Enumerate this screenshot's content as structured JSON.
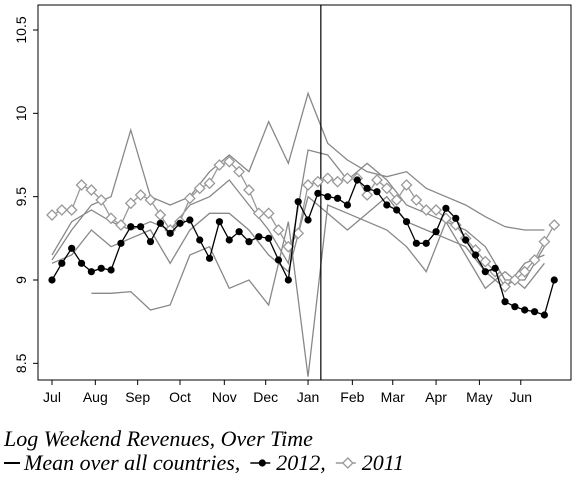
{
  "chart_data": {
    "type": "line",
    "title": "Log Weekend Revenues, Over Time",
    "legend": [
      {
        "label": "Mean over all countries,",
        "style": "line",
        "color": "#000000"
      },
      {
        "label": "2012,",
        "style": "circle",
        "color": "#000000"
      },
      {
        "label": "2011",
        "style": "diamond",
        "color": "#999999"
      }
    ],
    "x": [
      0,
      1,
      2,
      3,
      4,
      5,
      6,
      7,
      8,
      9,
      10,
      11,
      12,
      13,
      14,
      15,
      16,
      17,
      18,
      19,
      20,
      21,
      22,
      23,
      24,
      25,
      26,
      27,
      28,
      29,
      30,
      31,
      32,
      33,
      34,
      35,
      36,
      37,
      38,
      39,
      40,
      41,
      42,
      43,
      44,
      45,
      46,
      47,
      48,
      49,
      50,
      51
    ],
    "series": [
      {
        "color": "#000000",
        "marker": "circle",
        "values": [
          9.0,
          9.1,
          9.19,
          9.1,
          9.05,
          9.07,
          9.06,
          9.22,
          9.32,
          9.32,
          9.23,
          9.34,
          9.28,
          9.34,
          9.36,
          9.24,
          9.13,
          9.35,
          9.24,
          9.29,
          9.23,
          9.26,
          9.25,
          9.12,
          9.0,
          9.47,
          9.36,
          9.52,
          9.5,
          9.49,
          9.45,
          9.6,
          9.55,
          9.53,
          9.45,
          9.42,
          9.35,
          9.22,
          9.22,
          9.29,
          9.43,
          9.37,
          9.24,
          9.15,
          9.05,
          9.07,
          8.87,
          8.84,
          8.82,
          8.81,
          8.79,
          9.0
        ]
      },
      {
        "color": "#999999",
        "marker": "diamond",
        "values": [
          9.39,
          9.42,
          9.42,
          9.57,
          9.54,
          9.48,
          9.37,
          9.33,
          9.46,
          9.51,
          9.48,
          9.39,
          9.3,
          9.35,
          9.49,
          9.55,
          9.58,
          9.69,
          9.71,
          9.65,
          9.54,
          9.4,
          9.4,
          9.3,
          9.2,
          9.28,
          9.57,
          9.59,
          9.61,
          9.59,
          9.61,
          9.61,
          9.51,
          9.6,
          9.55,
          9.48,
          9.57,
          9.48,
          9.42,
          9.42,
          9.37,
          9.33,
          9.25,
          9.18,
          9.11,
          9.05,
          8.96,
          9.0,
          9.05,
          9.12,
          9.23,
          9.33
        ]
      }
    ],
    "country_lines": [
      {
        "color": "#888888",
        "x": [
          0,
          2,
          4,
          6,
          8,
          10,
          12,
          14,
          16,
          18,
          20,
          22,
          24,
          26,
          28,
          30,
          32,
          34,
          36,
          38,
          40,
          42,
          44,
          46,
          48,
          50
        ],
        "values": [
          9.12,
          9.3,
          9.45,
          9.5,
          9.9,
          9.5,
          9.45,
          9.5,
          9.65,
          9.75,
          9.65,
          9.95,
          9.7,
          10.12,
          9.82,
          9.72,
          9.65,
          9.62,
          9.65,
          9.55,
          9.5,
          9.45,
          9.38,
          9.32,
          9.3,
          9.3
        ]
      },
      {
        "color": "#888888",
        "x": [
          0,
          2,
          4,
          6,
          8,
          10,
          12,
          14,
          16,
          18,
          20,
          22,
          24,
          26,
          28,
          30,
          32,
          34,
          36,
          38,
          40,
          42,
          44,
          46,
          48,
          50
        ],
        "values": [
          null,
          null,
          8.92,
          8.92,
          8.93,
          8.82,
          8.85,
          9.15,
          9.2,
          8.95,
          9.0,
          8.85,
          9.35,
          8.42,
          9.45,
          9.4,
          9.35,
          9.3,
          9.2,
          9.05,
          9.35,
          9.15,
          8.95,
          9.05,
          8.95,
          9.1
        ]
      },
      {
        "color": "#888888",
        "x": [
          0,
          2,
          4,
          6,
          8,
          10,
          12,
          14,
          16,
          18,
          20,
          22,
          24,
          26,
          28,
          30,
          32,
          34,
          36,
          38,
          40,
          42,
          44,
          46,
          48,
          50
        ],
        "values": [
          9.15,
          9.35,
          9.42,
          9.35,
          9.3,
          9.35,
          9.3,
          9.45,
          9.5,
          9.6,
          9.45,
          9.3,
          9.1,
          9.78,
          9.75,
          9.6,
          9.7,
          9.6,
          9.45,
          9.4,
          9.35,
          9.3,
          9.2,
          9.0,
          9.0,
          9.2
        ]
      },
      {
        "color": "#888888",
        "x": [
          0,
          2,
          4,
          6,
          8,
          10,
          12,
          14,
          16,
          18,
          20,
          22,
          24,
          26,
          28,
          30,
          32,
          34,
          36,
          38,
          40,
          42,
          44,
          46,
          48,
          50
        ],
        "values": [
          9.1,
          9.15,
          9.3,
          9.2,
          9.25,
          9.3,
          9.1,
          9.3,
          9.4,
          9.4,
          9.3,
          9.15,
          9.05,
          9.5,
          9.4,
          9.3,
          9.4,
          9.5,
          9.35,
          9.3,
          9.25,
          9.2,
          9.05,
          8.95,
          9.1,
          9.15
        ]
      }
    ],
    "vline_x": 27.3,
    "xlim": [
      -1.42,
      52.7
    ],
    "xticks": [
      {
        "value": 0,
        "label": "Jul"
      },
      {
        "value": 4.4,
        "label": "Aug"
      },
      {
        "value": 8.7,
        "label": "Sep"
      },
      {
        "value": 13,
        "label": "Oct"
      },
      {
        "value": 17.5,
        "label": "Nov"
      },
      {
        "value": 21.7,
        "label": "Dec"
      },
      {
        "value": 26,
        "label": "Jan"
      },
      {
        "value": 30.5,
        "label": "Feb"
      },
      {
        "value": 34.6,
        "label": "Mar"
      },
      {
        "value": 39,
        "label": "Apr"
      },
      {
        "value": 43.4,
        "label": "May"
      },
      {
        "value": 47.6,
        "label": "Jun"
      }
    ],
    "ylim": [
      8.4,
      10.65
    ],
    "yticks": [
      8.5,
      9,
      9.5,
      10,
      10.5
    ]
  }
}
